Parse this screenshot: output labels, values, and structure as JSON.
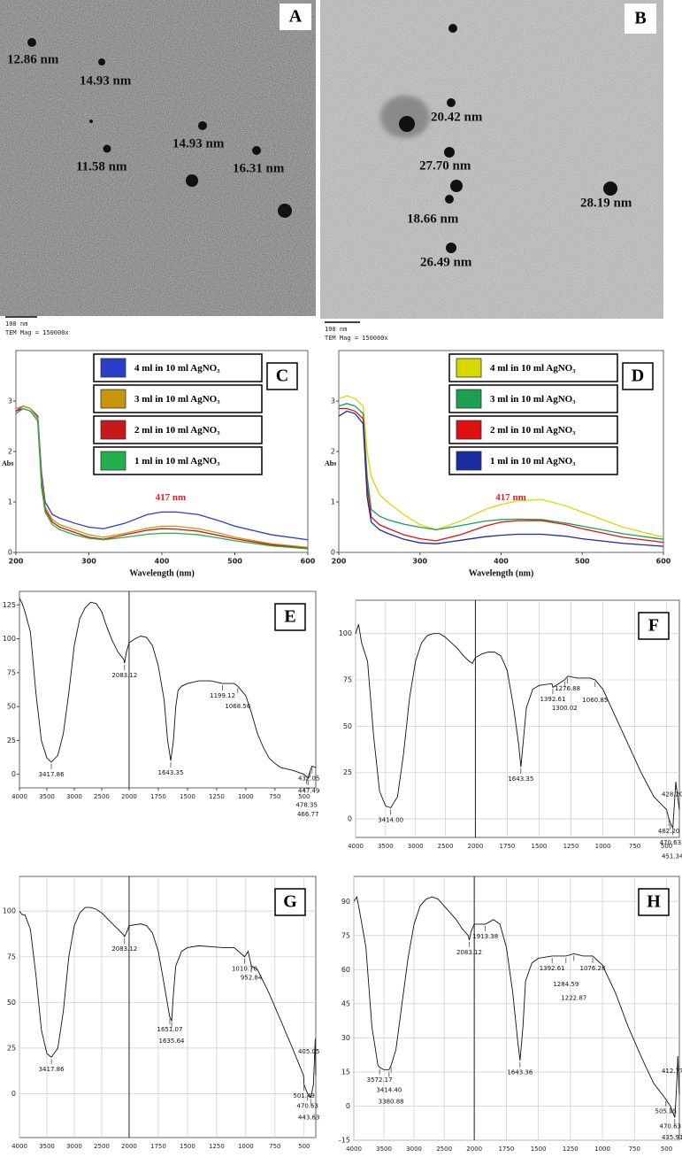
{
  "images": [
    {
      "label": "A",
      "sizes": [
        "12.86 nm",
        "14.93 nm",
        "14.93 nm",
        "11.58 nm",
        "16.31 nm"
      ],
      "scale_bar": "100 nm",
      "magnification": "TEM Mag = 150000x"
    },
    {
      "label": "B",
      "sizes": [
        "20.42 nm",
        "27.70 nm",
        "18.66 nm",
        "28.19 nm",
        "26.49 nm"
      ],
      "scale_bar": "100 nm",
      "magnification": "TEM Mag = 150000x"
    }
  ],
  "chart_data": [
    {
      "type": "line",
      "label": "C",
      "xlabel": "Wavelength (nm)",
      "ylabel": "Abs",
      "annotation": "417 nm",
      "annotation_color": "#e02020",
      "legend": "upper right",
      "x": [
        200,
        210,
        220,
        230,
        235,
        240,
        250,
        260,
        280,
        300,
        320,
        350,
        380,
        400,
        420,
        450,
        480,
        500,
        550,
        600
      ],
      "series": [
        {
          "name": "4 ml in 10 ml AgNO₃",
          "color": "#2a3fc8",
          "values": [
            2.8,
            2.9,
            2.85,
            2.7,
            1.6,
            1.0,
            0.75,
            0.68,
            0.58,
            0.5,
            0.47,
            0.58,
            0.75,
            0.8,
            0.8,
            0.75,
            0.62,
            0.52,
            0.35,
            0.25
          ]
        },
        {
          "name": "3 ml in 10 ml AgNO₃",
          "color": "#c8960a",
          "values": [
            2.85,
            2.9,
            2.85,
            2.65,
            1.5,
            0.9,
            0.65,
            0.55,
            0.45,
            0.35,
            0.3,
            0.38,
            0.48,
            0.52,
            0.52,
            0.47,
            0.38,
            0.3,
            0.17,
            0.1
          ]
        },
        {
          "name": "2 ml in 10 ml AgNO₃",
          "color": "#c81818",
          "values": [
            2.8,
            2.85,
            2.8,
            2.6,
            1.4,
            0.85,
            0.6,
            0.5,
            0.4,
            0.3,
            0.26,
            0.35,
            0.44,
            0.47,
            0.46,
            0.42,
            0.33,
            0.27,
            0.15,
            0.08
          ]
        },
        {
          "name": "1 ml in 10 ml AgNO₃",
          "color": "#22b04a",
          "values": [
            2.75,
            2.85,
            2.8,
            2.6,
            1.3,
            0.8,
            0.55,
            0.45,
            0.35,
            0.28,
            0.25,
            0.3,
            0.36,
            0.38,
            0.38,
            0.35,
            0.28,
            0.23,
            0.13,
            0.07
          ]
        }
      ],
      "xlim": [
        200,
        600
      ],
      "xticks": [
        200,
        300,
        400,
        500,
        600
      ],
      "ylim": [
        0,
        4
      ],
      "yticks": [
        0,
        1,
        2,
        3
      ],
      "grid": false
    },
    {
      "type": "line",
      "label": "D",
      "xlabel": "Wavelength (nm)",
      "ylabel": "Abs",
      "annotation": "417 nm",
      "annotation_color": "#e02020",
      "legend": "upper right",
      "x": [
        200,
        210,
        220,
        230,
        235,
        240,
        250,
        260,
        280,
        300,
        320,
        350,
        380,
        400,
        420,
        450,
        480,
        500,
        550,
        600
      ],
      "series": [
        {
          "name": "4 ml in 10 ml AgNO₃",
          "color": "#d8d800",
          "values": [
            3.05,
            3.1,
            3.05,
            2.9,
            2.0,
            1.5,
            1.15,
            1.0,
            0.75,
            0.55,
            0.45,
            0.62,
            0.85,
            0.95,
            1.02,
            1.05,
            0.92,
            0.8,
            0.5,
            0.3
          ]
        },
        {
          "name": "3 ml in 10 ml AgNO₃",
          "color": "#1aa050",
          "values": [
            2.9,
            2.95,
            2.9,
            2.75,
            1.5,
            0.85,
            0.72,
            0.65,
            0.56,
            0.5,
            0.45,
            0.53,
            0.62,
            0.65,
            0.66,
            0.65,
            0.58,
            0.52,
            0.37,
            0.26
          ]
        },
        {
          "name": "2 ml in 10 ml AgNO₃",
          "color": "#e01010",
          "values": [
            2.85,
            2.85,
            2.8,
            2.65,
            1.3,
            0.7,
            0.55,
            0.48,
            0.35,
            0.27,
            0.23,
            0.35,
            0.52,
            0.6,
            0.63,
            0.63,
            0.55,
            0.47,
            0.3,
            0.2
          ]
        },
        {
          "name": "1 ml in 10 ml AgNO₃",
          "color": "#1a2aa0",
          "values": [
            2.7,
            2.8,
            2.75,
            2.55,
            1.1,
            0.6,
            0.45,
            0.38,
            0.26,
            0.19,
            0.17,
            0.24,
            0.31,
            0.34,
            0.36,
            0.36,
            0.32,
            0.27,
            0.18,
            0.12
          ]
        }
      ],
      "xlim": [
        200,
        600
      ],
      "xticks": [
        200,
        300,
        400,
        500,
        600
      ],
      "ylim": [
        0,
        4
      ],
      "yticks": [
        0,
        1,
        2,
        3
      ],
      "grid": false
    },
    {
      "type": "line",
      "label": "E",
      "x": [
        4000,
        3950,
        3900,
        3800,
        3700,
        3600,
        3500,
        3418,
        3300,
        3200,
        3100,
        3000,
        2900,
        2800,
        2700,
        2600,
        2500,
        2400,
        2300,
        2200,
        2100,
        2083,
        2050,
        2000,
        1950,
        1900,
        1850,
        1800,
        1750,
        1700,
        1670,
        1643,
        1620,
        1600,
        1580,
        1550,
        1500,
        1400,
        1300,
        1199,
        1100,
        1068,
        1000,
        950,
        900,
        850,
        800,
        750,
        700,
        600,
        500,
        478,
        467,
        447,
        432,
        400
      ],
      "series": [
        {
          "color": "#111111",
          "values": [
            130,
            126,
            120,
            105,
            60,
            25,
            12,
            9,
            14,
            30,
            60,
            95,
            115,
            123,
            127,
            126,
            120,
            108,
            98,
            90,
            85,
            82,
            90,
            97,
            100,
            102,
            101,
            95,
            80,
            55,
            25,
            10,
            25,
            50,
            62,
            65,
            67,
            69,
            69,
            67,
            67,
            65,
            58,
            45,
            30,
            20,
            12,
            8,
            5,
            3,
            0,
            -2,
            -3,
            3,
            6,
            5
          ]
        }
      ],
      "xlim": [
        4000,
        400
      ],
      "xbreak": 2000,
      "xticks": [
        4000,
        3500,
        3000,
        2500,
        2000,
        1750,
        1500,
        1250,
        1000,
        750,
        500
      ],
      "ylim": [
        -10,
        135
      ],
      "yticks": [
        0,
        25,
        50,
        75,
        100,
        125
      ],
      "grid": false,
      "peaks": [
        3417.86,
        2083.12,
        1643.35,
        1199.12,
        1068.56,
        432.05,
        447.49,
        478.35,
        466.77
      ]
    },
    {
      "type": "line",
      "label": "F",
      "x": [
        4000,
        3950,
        3900,
        3800,
        3700,
        3600,
        3500,
        3414,
        3300,
        3200,
        3100,
        3000,
        2900,
        2800,
        2700,
        2600,
        2500,
        2400,
        2300,
        2200,
        2100,
        2050,
        2000,
        1950,
        1900,
        1850,
        1800,
        1750,
        1700,
        1660,
        1643,
        1620,
        1600,
        1550,
        1500,
        1400,
        1392,
        1300,
        1276,
        1200,
        1100,
        1060,
        1000,
        900,
        800,
        700,
        600,
        500,
        482,
        470,
        451,
        428,
        400
      ],
      "series": [
        {
          "color": "#111111",
          "values": [
            100,
            105,
            95,
            85,
            45,
            15,
            7,
            6,
            12,
            35,
            65,
            85,
            95,
            99,
            100,
            100,
            98,
            95,
            92,
            88,
            85,
            84,
            87,
            89,
            90,
            90,
            88,
            80,
            60,
            40,
            28,
            45,
            60,
            70,
            72,
            73,
            71,
            75,
            77,
            76,
            76,
            75,
            70,
            55,
            40,
            25,
            12,
            5,
            0,
            -2,
            -5,
            20,
            5
          ]
        }
      ],
      "xlim": [
        4000,
        400
      ],
      "xbreak": 2000,
      "xticks": [
        4000,
        3500,
        3000,
        2500,
        2000,
        1750,
        1500,
        1250,
        1000,
        750,
        500
      ],
      "ylim": [
        -10,
        118
      ],
      "yticks": [
        0,
        25,
        50,
        75,
        100
      ],
      "grid": true,
      "peaks": [
        {
          "value": 3414,
          "label": "3414.00"
        },
        1643.35,
        1392.61,
        1300.02,
        1276.88,
        1060.85,
        {
          "value": 428.2,
          "label": "428.20"
        },
        {
          "value": 482.2,
          "label": "482.20"
        },
        470.63,
        451.34
      ]
    },
    {
      "type": "line",
      "label": "G",
      "x": [
        4000,
        3950,
        3900,
        3800,
        3700,
        3600,
        3500,
        3418,
        3300,
        3200,
        3100,
        3000,
        2900,
        2800,
        2700,
        2600,
        2500,
        2400,
        2300,
        2200,
        2100,
        2083,
        2050,
        2000,
        1900,
        1850,
        1800,
        1750,
        1700,
        1660,
        1651,
        1635,
        1620,
        1600,
        1550,
        1500,
        1400,
        1200,
        1100,
        1010,
        980,
        952,
        900,
        800,
        700,
        600,
        505,
        501,
        470,
        443,
        420,
        405,
        400
      ],
      "series": [
        {
          "color": "#111111",
          "values": [
            100,
            98,
            98,
            90,
            65,
            35,
            22,
            20,
            25,
            45,
            75,
            92,
            99,
            102,
            102,
            101,
            99,
            96,
            93,
            90,
            87,
            86,
            88,
            92,
            93,
            92,
            88,
            78,
            60,
            45,
            42,
            40,
            55,
            70,
            78,
            80,
            81,
            80,
            80,
            75,
            78,
            70,
            68,
            55,
            40,
            25,
            10,
            5,
            0,
            -2,
            5,
            30,
            10
          ]
        }
      ],
      "xlim": [
        4000,
        400
      ],
      "xbreak": 2000,
      "xticks": [
        4000,
        3500,
        3000,
        2500,
        2000,
        1750,
        1500,
        1250,
        1000,
        750,
        500
      ],
      "ylim": [
        -24,
        119
      ],
      "yticks": [
        0,
        25,
        50,
        75,
        100
      ],
      "grid": true,
      "peaks": [
        3417.86,
        2083.12,
        1651.07,
        1635.64,
        {
          "value": 1010.7,
          "label": "1010.70"
        },
        952.84,
        405.05,
        501.49,
        470.63,
        443.63
      ]
    },
    {
      "type": "line",
      "label": "H",
      "x": [
        4000,
        3950,
        3900,
        3800,
        3700,
        3600,
        3572,
        3500,
        3414,
        3380,
        3300,
        3200,
        3100,
        3000,
        2900,
        2800,
        2700,
        2600,
        2500,
        2400,
        2300,
        2200,
        2100,
        2083,
        2050,
        2000,
        1913,
        1850,
        1800,
        1750,
        1700,
        1660,
        1643,
        1620,
        1600,
        1550,
        1500,
        1392,
        1284,
        1222,
        1150,
        1076,
        1000,
        900,
        800,
        700,
        600,
        505,
        470,
        435,
        420,
        412,
        400
      ],
      "series": [
        {
          "color": "#111111",
          "values": [
            90,
            92,
            85,
            70,
            35,
            18,
            17,
            16,
            16,
            18,
            25,
            45,
            65,
            80,
            88,
            91,
            92,
            91,
            88,
            85,
            82,
            78,
            75,
            73,
            77,
            80,
            80,
            82,
            80,
            70,
            50,
            28,
            20,
            35,
            55,
            63,
            65,
            66,
            66,
            67,
            66,
            66,
            62,
            50,
            35,
            22,
            10,
            3,
            0,
            -5,
            10,
            22,
            5
          ]
        }
      ],
      "xlim": [
        4000,
        400
      ],
      "xbreak": 2000,
      "xticks": [
        4000,
        3500,
        3000,
        2500,
        2000,
        1750,
        1500,
        1250,
        1000,
        750,
        500
      ],
      "ylim": [
        -15,
        101
      ],
      "yticks": [
        -15,
        0,
        15,
        30,
        45,
        60,
        75,
        90
      ],
      "grid": true,
      "peaks": [
        3572.17,
        {
          "value": 3414.4,
          "label": "3414.40"
        },
        3380.88,
        2083.12,
        1913.38,
        1643.36,
        1392.61,
        1284.59,
        1222.87,
        1076.28,
        412.77,
        505.35,
        470.63,
        435.91
      ]
    }
  ]
}
